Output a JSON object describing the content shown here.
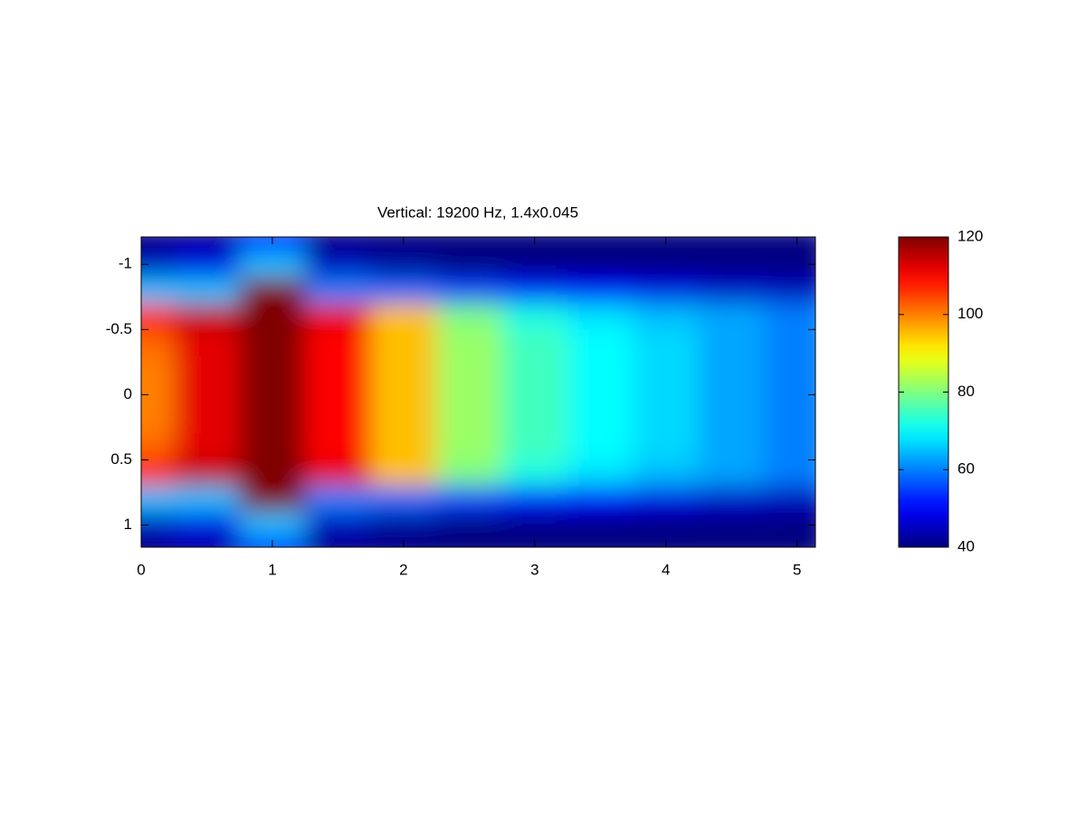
{
  "chart_data": {
    "type": "heatmap",
    "title": "Vertical: 19200 Hz, 1.4x0.045",
    "x": [
      0,
      0.5,
      1,
      1.5,
      2,
      2.5,
      3,
      3.5,
      4,
      4.5,
      5
    ],
    "y": [
      -1.2,
      -1.0,
      -0.8,
      -0.6,
      -0.4,
      -0.2,
      0,
      0.2,
      0.4,
      0.6,
      0.8,
      1.0,
      1.2
    ],
    "z": [
      [
        40,
        42,
        50,
        40,
        40,
        40,
        40,
        40,
        40,
        40,
        40
      ],
      [
        45,
        48,
        65,
        45,
        42,
        40,
        40,
        40,
        40,
        40,
        40
      ],
      [
        65,
        65,
        120,
        60,
        58,
        55,
        52,
        50,
        48,
        46,
        45
      ],
      [
        110,
        115,
        120,
        112,
        95,
        80,
        72,
        68,
        65,
        63,
        60
      ],
      [
        102,
        112,
        120,
        110,
        95,
        82,
        75,
        70,
        67,
        63,
        60
      ],
      [
        100,
        112,
        120,
        110,
        95,
        82,
        75,
        70,
        67,
        63,
        60
      ],
      [
        100,
        112,
        120,
        110,
        95,
        82,
        75,
        70,
        67,
        63,
        60
      ],
      [
        100,
        112,
        120,
        110,
        95,
        82,
        75,
        70,
        67,
        63,
        60
      ],
      [
        102,
        112,
        120,
        110,
        95,
        82,
        75,
        70,
        67,
        63,
        60
      ],
      [
        110,
        115,
        120,
        112,
        95,
        80,
        72,
        68,
        65,
        63,
        60
      ],
      [
        65,
        65,
        120,
        60,
        58,
        55,
        52,
        50,
        48,
        46,
        45
      ],
      [
        45,
        48,
        65,
        45,
        42,
        40,
        40,
        40,
        40,
        40,
        40
      ],
      [
        40,
        42,
        50,
        40,
        40,
        40,
        40,
        40,
        40,
        40,
        40
      ]
    ],
    "xlim": [
      0,
      5.14
    ],
    "xticks": [
      0,
      1,
      2,
      3,
      4,
      5
    ],
    "ylim": [
      -1.21,
      1.17
    ],
    "yticks": [
      -1,
      -0.5,
      0,
      0.5,
      1
    ],
    "y_reversed": true,
    "colormap": "jet",
    "clim": [
      40,
      120
    ],
    "colorbar_ticks": [
      40,
      60,
      80,
      100,
      120
    ]
  }
}
